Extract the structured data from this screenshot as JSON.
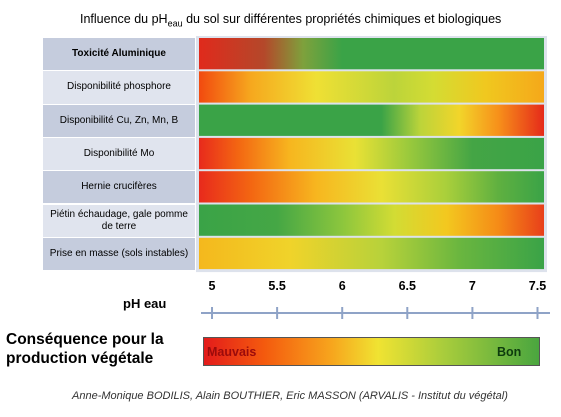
{
  "chart_data": {
    "type": "heatmap",
    "title_prefix": "Influence du pH",
    "title_sub": "eau",
    "title_suffix": " du sol sur différentes propriétés chimiques et biologiques",
    "xlabel": "pH eau",
    "x_ticks": [
      5,
      5.5,
      6,
      6.5,
      7,
      7.5
    ],
    "x_tick_labels": [
      "5",
      "5.5",
      "6",
      "6.5",
      "7",
      "7.5"
    ],
    "xlim": [
      4.9,
      7.55
    ],
    "rows": [
      {
        "label": "Toxicité Aluminique",
        "bold": true,
        "gradient": [
          [
            4.9,
            "#e02a1c"
          ],
          [
            5.4,
            "#b4482a"
          ],
          [
            5.7,
            "#7ea13c"
          ],
          [
            6.0,
            "#3aa347"
          ],
          [
            7.55,
            "#3aa347"
          ]
        ]
      },
      {
        "label": "Disponibilité phosphore",
        "bold": false,
        "gradient": [
          [
            4.9,
            "#f24a0f"
          ],
          [
            5.3,
            "#f6a81e"
          ],
          [
            5.8,
            "#efe034"
          ],
          [
            6.4,
            "#bcd43a"
          ],
          [
            6.7,
            "#d4dc33"
          ],
          [
            7.1,
            "#f0c81f"
          ],
          [
            7.55,
            "#f5a81a"
          ]
        ]
      },
      {
        "label": "Disponibilité Cu, Zn, Mn, B",
        "bold": false,
        "gradient": [
          [
            4.9,
            "#3aa347"
          ],
          [
            6.3,
            "#3aa347"
          ],
          [
            6.6,
            "#bcd43a"
          ],
          [
            6.9,
            "#f2d52a"
          ],
          [
            7.2,
            "#f7901a"
          ],
          [
            7.55,
            "#e52a1a"
          ]
        ]
      },
      {
        "label": "Disponibilité Mo",
        "bold": false,
        "gradient": [
          [
            4.9,
            "#e82a1c"
          ],
          [
            5.2,
            "#f36612"
          ],
          [
            5.6,
            "#f7b61f"
          ],
          [
            6.1,
            "#e9e135"
          ],
          [
            6.5,
            "#9cca3c"
          ],
          [
            7.0,
            "#44a545"
          ],
          [
            7.55,
            "#3aa347"
          ]
        ]
      },
      {
        "label": "Hernie crucifères",
        "bold": false,
        "gradient": [
          [
            4.9,
            "#e82a1c"
          ],
          [
            5.3,
            "#f36612"
          ],
          [
            5.8,
            "#f7b61f"
          ],
          [
            6.3,
            "#eae035"
          ],
          [
            6.8,
            "#a9cf3b"
          ],
          [
            7.2,
            "#5fb040"
          ],
          [
            7.55,
            "#3aa347"
          ]
        ]
      },
      {
        "label": "Piétin échaudage, gale pomme de terre",
        "bold": false,
        "gradient": [
          [
            4.9,
            "#3aa347"
          ],
          [
            5.5,
            "#45a745"
          ],
          [
            6.0,
            "#8cc63d"
          ],
          [
            6.4,
            "#d2dc34"
          ],
          [
            6.8,
            "#f3c81f"
          ],
          [
            7.2,
            "#f58b17"
          ],
          [
            7.55,
            "#e83f1a"
          ]
        ]
      },
      {
        "label": "Prise en masse (sols instables)",
        "bold": false,
        "gradient": [
          [
            4.9,
            "#f4b81d"
          ],
          [
            5.6,
            "#f0d32a"
          ],
          [
            6.3,
            "#b8d23a"
          ],
          [
            6.9,
            "#6ab63f"
          ],
          [
            7.55,
            "#3aa347"
          ]
        ]
      }
    ]
  },
  "consequence": {
    "label": "Conséquence pour la production végétale",
    "bad": "Mauvais",
    "good": "Bon"
  },
  "credit": "Anne-Monique BODILIS, Alain BOUTHIER, Eric MASSON (ARVALIS - Institut du végétal)"
}
